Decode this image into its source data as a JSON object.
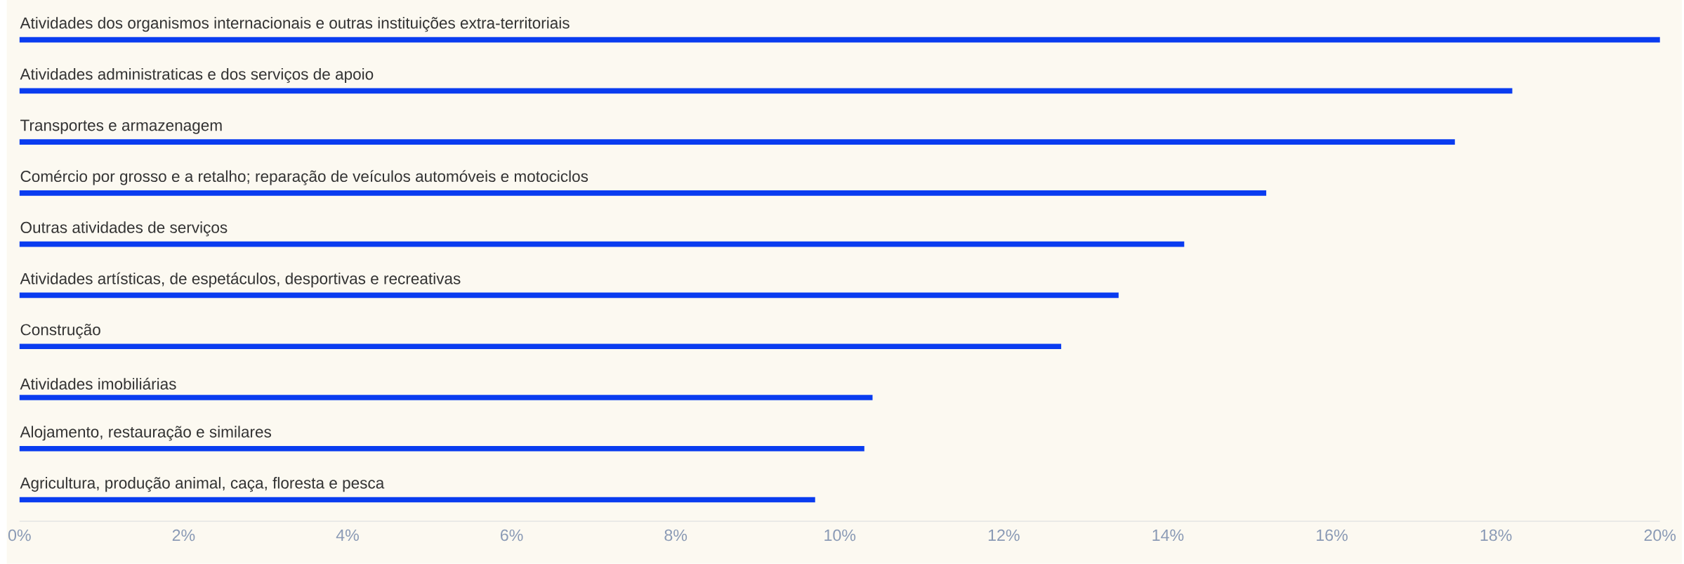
{
  "chart_data": {
    "type": "bar",
    "orientation": "horizontal",
    "categories": [
      "Atividades dos organismos internacionais e outras instituições extra-territoriais",
      "Atividades administraticas e dos serviços de apoio",
      "Transportes e armazenagem",
      "Comércio por grosso e a retalho; reparação de veículos automóveis e motociclos",
      "Outras atividades de serviços",
      "Atividades artísticas, de espetáculos, desportivas e recreativas",
      "Construção",
      "Atividades imobiliárias",
      "Alojamento, restauração e similares",
      "Agricultura, produção animal, caça, floresta e pesca"
    ],
    "values": [
      20.0,
      18.2,
      17.5,
      15.2,
      14.2,
      13.4,
      12.7,
      10.4,
      10.3,
      9.7
    ],
    "color": "#0a3cf0",
    "xlim": [
      0,
      20
    ],
    "xticks": [
      {
        "value": 0,
        "label": "0%"
      },
      {
        "value": 2,
        "label": "2%"
      },
      {
        "value": 4,
        "label": "4%"
      },
      {
        "value": 6,
        "label": "6%"
      },
      {
        "value": 8,
        "label": "8%"
      },
      {
        "value": 10,
        "label": "10%"
      },
      {
        "value": 12,
        "label": "12%"
      },
      {
        "value": 14,
        "label": "14%"
      },
      {
        "value": 16,
        "label": "16%"
      },
      {
        "value": 18,
        "label": "18%"
      },
      {
        "value": 20,
        "label": "20%"
      }
    ],
    "grid": false
  }
}
